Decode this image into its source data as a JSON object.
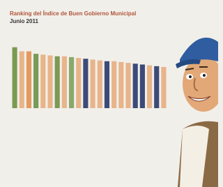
{
  "chart_data": {
    "type": "bar",
    "title": "Ranking del Índice de Buen Gobierno Municipal",
    "subtitle": "Junio 2011",
    "categories": [
      null,
      null,
      null,
      null,
      null,
      null,
      null,
      null,
      null,
      null,
      null,
      null,
      null,
      null,
      null,
      null,
      null,
      null,
      null,
      null,
      null,
      null
    ],
    "values": [
      74,
      69,
      69,
      66,
      65,
      64,
      63,
      63,
      62,
      61,
      60,
      59,
      58,
      57,
      57,
      56,
      55,
      54,
      53,
      52,
      51,
      50
    ],
    "colors": [
      "#7a9a55",
      "#e8b48a",
      "#e39a5e",
      "#7a9a55",
      "#e8b48a",
      "#e8b48a",
      "#7a9a55",
      "#e8b48a",
      "#8aa86a",
      "#e8b48a",
      "#3c4a78",
      "#e8b48a",
      "#e8b48a",
      "#3c4a78",
      "#e8b48a",
      "#e8b48a",
      "#e8b48a",
      "#3c4a78",
      "#3c4a78",
      "#e8b48a",
      "#3c4a78",
      "#e8b48a"
    ],
    "ylim": [
      0,
      100
    ]
  }
}
